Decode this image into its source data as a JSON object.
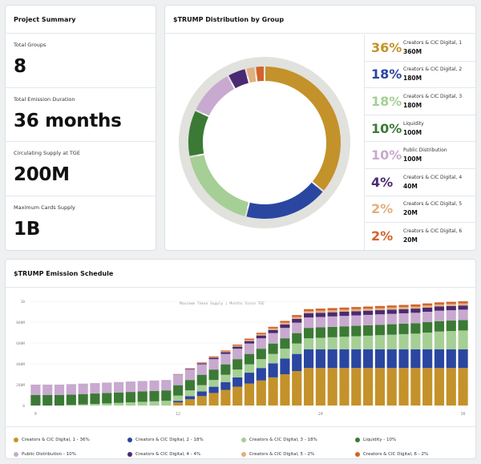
{
  "summary": {
    "title": "Project Summary",
    "stats": [
      {
        "label": "Total Groups",
        "value": "8"
      },
      {
        "label": "Total Emission Duration",
        "value": "36 months"
      },
      {
        "label": "Circulating Supply at TGE",
        "value": "200M"
      },
      {
        "label": "Maximum Cards Supply",
        "value": "1B"
      }
    ]
  },
  "distribution": {
    "title": "$TRUMP Distribution by Group",
    "groups": [
      {
        "pct": "36%",
        "name": "Creators & CIC Digital, 1",
        "amount": "360M",
        "color": "#c4922a",
        "value": 36
      },
      {
        "pct": "18%",
        "name": "Creators & CIC Digital, 2",
        "amount": "180M",
        "color": "#2a46a0",
        "value": 18
      },
      {
        "pct": "18%",
        "name": "Creators & CIC Digital, 3",
        "amount": "180M",
        "color": "#a5cf94",
        "value": 18
      },
      {
        "pct": "10%",
        "name": "Liquidity",
        "amount": "100M",
        "color": "#3b7a35",
        "value": 10
      },
      {
        "pct": "10%",
        "name": "Public Distribution",
        "amount": "100M",
        "color": "#c8a9cf",
        "value": 10
      },
      {
        "pct": "4%",
        "name": "Creators & CIC Digital, 4",
        "amount": "40M",
        "color": "#4a2a72",
        "value": 4
      },
      {
        "pct": "2%",
        "name": "Creators & CIC Digital, 5",
        "amount": "20M",
        "color": "#e0b07e",
        "value": 2
      },
      {
        "pct": "2%",
        "name": "Creators & CIC Digital, 6",
        "amount": "20M",
        "color": "#d4622a",
        "value": 2
      }
    ]
  },
  "schedule": {
    "title": "$TRUMP Emission Schedule",
    "legend": [
      "Creators & CIC Digital, 1 - 36%",
      "Creators & CIC Digital, 2 - 18%",
      "Creators & CIC Digital, 3 - 18%",
      "Liquidity - 10%",
      "Public Distribution - 10%",
      "Creators & CIC Digital, 4 - 4%",
      "Creators & CIC Digital, 5 - 2%",
      "Creators & CIC Digital, 6 - 2%"
    ]
  },
  "chart_data": [
    {
      "type": "pie",
      "title": "$TRUMP Distribution by Group",
      "categories": [
        "Creators & CIC Digital, 1",
        "Creators & CIC Digital, 2",
        "Creators & CIC Digital, 3",
        "Liquidity",
        "Public Distribution",
        "Creators & CIC Digital, 4",
        "Creators & CIC Digital, 5",
        "Creators & CIC Digital, 6"
      ],
      "values": [
        36,
        18,
        18,
        10,
        10,
        4,
        2,
        2
      ]
    },
    {
      "type": "bar",
      "stacked": true,
      "title": "$TRUMP Emission Schedule",
      "annotation": "Maximum Token Supply | Months Since TGE",
      "x": [
        0,
        1,
        2,
        3,
        4,
        5,
        6,
        7,
        8,
        9,
        10,
        11,
        12,
        13,
        14,
        15,
        16,
        17,
        18,
        19,
        20,
        21,
        22,
        23,
        24,
        25,
        26,
        27,
        28,
        29,
        30,
        31,
        32,
        33,
        34,
        35,
        36
      ],
      "xticks": [
        "0",
        "12",
        "24",
        "36"
      ],
      "yticks": [
        "0",
        "200M",
        "400M",
        "600M",
        "800M",
        "1B"
      ],
      "ylim": [
        0,
        1000
      ],
      "yunit": "M",
      "series": [
        {
          "name": "Creators & CIC Digital, 1 - 36%",
          "color": "#c4922a",
          "values": [
            0,
            0,
            0,
            0,
            0,
            0,
            0,
            0,
            0,
            0,
            0,
            0,
            30,
            60,
            90,
            120,
            150,
            180,
            210,
            240,
            270,
            300,
            330,
            360,
            360,
            360,
            360,
            360,
            360,
            360,
            360,
            360,
            360,
            360,
            360,
            360,
            360
          ]
        },
        {
          "name": "Creators & CIC Digital, 2 - 18%",
          "color": "#2a46a0",
          "values": [
            0,
            0,
            0,
            0,
            0,
            0,
            0,
            0,
            0,
            0,
            0,
            0,
            15,
            30,
            45,
            60,
            75,
            90,
            105,
            120,
            135,
            150,
            165,
            180,
            180,
            180,
            180,
            180,
            180,
            180,
            180,
            180,
            180,
            180,
            180,
            180,
            180
          ]
        },
        {
          "name": "Creators & CIC Digital, 3 - 18%",
          "color": "#a5cf94",
          "values": [
            0,
            0,
            0,
            5,
            10,
            15,
            20,
            25,
            30,
            35,
            40,
            45,
            50,
            55,
            60,
            65,
            70,
            75,
            80,
            85,
            90,
            95,
            100,
            105,
            110,
            115,
            120,
            125,
            130,
            135,
            140,
            145,
            150,
            160,
            170,
            175,
            180
          ]
        },
        {
          "name": "Liquidity - 10%",
          "color": "#3b7a35",
          "values": [
            100,
            100,
            100,
            100,
            100,
            100,
            100,
            100,
            100,
            100,
            100,
            100,
            100,
            100,
            100,
            100,
            100,
            100,
            100,
            100,
            100,
            100,
            100,
            100,
            100,
            100,
            100,
            100,
            100,
            100,
            100,
            100,
            100,
            100,
            100,
            100,
            100
          ]
        },
        {
          "name": "Public Distribution - 10%",
          "color": "#c8a9cf",
          "values": [
            100,
            100,
            100,
            100,
            100,
            100,
            100,
            100,
            100,
            100,
            100,
            100,
            100,
            100,
            100,
            100,
            100,
            100,
            100,
            100,
            100,
            100,
            100,
            100,
            100,
            100,
            100,
            100,
            100,
            100,
            100,
            100,
            100,
            100,
            100,
            100,
            100
          ]
        },
        {
          "name": "Creators & CIC Digital, 4 - 4%",
          "color": "#4a2a72",
          "values": [
            0,
            0,
            0,
            0,
            0,
            0,
            0,
            0,
            0,
            0,
            0,
            0,
            3,
            7,
            10,
            13,
            17,
            20,
            23,
            27,
            30,
            33,
            37,
            40,
            40,
            40,
            40,
            40,
            40,
            40,
            40,
            40,
            40,
            40,
            40,
            40,
            40
          ]
        },
        {
          "name": "Creators & CIC Digital, 5 - 2%",
          "color": "#e0b07e",
          "values": [
            0,
            0,
            0,
            0,
            0,
            0,
            0,
            0,
            0,
            0,
            0,
            0,
            2,
            3,
            5,
            7,
            8,
            10,
            12,
            13,
            15,
            17,
            18,
            20,
            20,
            20,
            20,
            20,
            20,
            20,
            20,
            20,
            20,
            20,
            20,
            20,
            20
          ]
        },
        {
          "name": "Creators & CIC Digital, 6 - 2%",
          "color": "#d4622a",
          "values": [
            0,
            0,
            0,
            0,
            0,
            0,
            0,
            0,
            0,
            0,
            0,
            0,
            2,
            3,
            5,
            7,
            8,
            10,
            12,
            13,
            15,
            17,
            18,
            20,
            20,
            20,
            20,
            20,
            20,
            20,
            20,
            20,
            20,
            20,
            20,
            20,
            20
          ]
        }
      ]
    }
  ]
}
